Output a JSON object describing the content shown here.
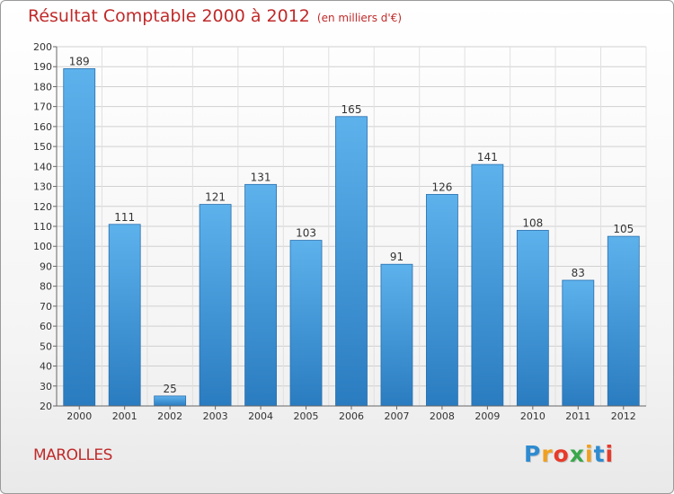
{
  "chart_data": {
    "type": "bar",
    "title": "Résultat Comptable 2000 à 2012",
    "subtitle": "(en milliers d'€)",
    "categories": [
      "2000",
      "2001",
      "2002",
      "2003",
      "2004",
      "2005",
      "2006",
      "2007",
      "2008",
      "2009",
      "2010",
      "2011",
      "2012"
    ],
    "values": [
      189,
      111,
      25,
      121,
      131,
      103,
      165,
      91,
      126,
      141,
      108,
      83,
      105
    ],
    "xlabel": "",
    "ylabel": "",
    "ylim": [
      20,
      200
    ],
    "yticks": [
      20,
      30,
      40,
      50,
      60,
      70,
      80,
      90,
      100,
      110,
      120,
      130,
      140,
      150,
      160,
      170,
      180,
      190,
      200
    ],
    "grid": true,
    "bar_color": "#4a9fdc"
  },
  "commune": "MAROLLES",
  "logo": {
    "letters": [
      "P",
      "r",
      "o",
      "x",
      "i",
      "t",
      "i"
    ],
    "colors": [
      "#2e8bd0",
      "#f0a020",
      "#e83a2a",
      "#3aa84a",
      "#f0a020",
      "#2e8bd0",
      "#e83a2a"
    ]
  }
}
